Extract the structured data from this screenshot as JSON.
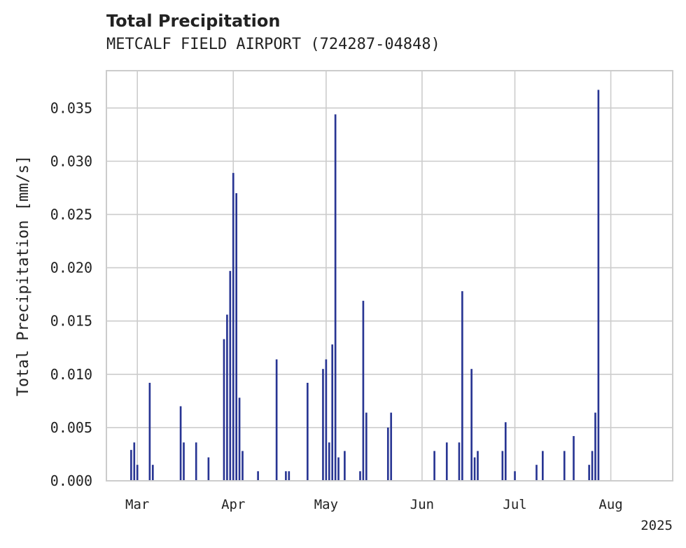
{
  "chart_data": {
    "type": "bar",
    "title": "Total Precipitation",
    "subtitle": "METCALF FIELD AIRPORT (724287-04848)",
    "xlabel": "",
    "ylabel": "Total Precipitation [mm/s]",
    "x_axis": "date",
    "xlim": [
      "2025-02-19",
      "2025-08-21"
    ],
    "ylim": [
      0,
      0.0385
    ],
    "x_ticks": [
      {
        "date": "2025-03-01",
        "label": "Mar"
      },
      {
        "date": "2025-04-01",
        "label": "Apr"
      },
      {
        "date": "2025-05-01",
        "label": "May"
      },
      {
        "date": "2025-06-01",
        "label": "Jun"
      },
      {
        "date": "2025-07-01",
        "label": "Jul"
      },
      {
        "date": "2025-08-01",
        "label": "Aug"
      }
    ],
    "x_offset_label": "2025",
    "y_ticks": [
      {
        "value": 0.0,
        "label": "0.000"
      },
      {
        "value": 0.005,
        "label": "0.005"
      },
      {
        "value": 0.01,
        "label": "0.010"
      },
      {
        "value": 0.015,
        "label": "0.015"
      },
      {
        "value": 0.02,
        "label": "0.020"
      },
      {
        "value": 0.025,
        "label": "0.025"
      },
      {
        "value": 0.03,
        "label": "0.030"
      },
      {
        "value": 0.035,
        "label": "0.035"
      }
    ],
    "grid": true,
    "bar_color": "#283593",
    "series": [
      {
        "x": [
          "2025-02-27",
          "2025-02-28",
          "2025-03-01",
          "2025-03-05",
          "2025-03-06",
          "2025-03-15",
          "2025-03-16",
          "2025-03-20",
          "2025-03-24",
          "2025-03-29",
          "2025-03-30",
          "2025-03-31",
          "2025-04-01",
          "2025-04-02",
          "2025-04-03",
          "2025-04-04",
          "2025-04-09",
          "2025-04-15",
          "2025-04-18",
          "2025-04-19",
          "2025-04-25",
          "2025-04-30",
          "2025-05-01",
          "2025-05-02",
          "2025-05-03",
          "2025-05-04",
          "2025-05-05",
          "2025-05-07",
          "2025-05-12",
          "2025-05-13",
          "2025-05-14",
          "2025-05-21",
          "2025-05-22",
          "2025-06-05",
          "2025-06-09",
          "2025-06-13",
          "2025-06-14",
          "2025-06-17",
          "2025-06-18",
          "2025-06-19",
          "2025-06-27",
          "2025-06-28",
          "2025-07-01",
          "2025-07-08",
          "2025-07-10",
          "2025-07-17",
          "2025-07-20",
          "2025-07-25",
          "2025-07-26",
          "2025-07-27",
          "2025-07-28"
        ],
        "values": [
          0.0029,
          0.0036,
          0.0015,
          0.0092,
          0.0015,
          0.007,
          0.0036,
          0.0036,
          0.0022,
          0.0133,
          0.0156,
          0.0197,
          0.0289,
          0.027,
          0.0078,
          0.0028,
          0.0009,
          0.0114,
          0.0009,
          0.0009,
          0.0092,
          0.0105,
          0.0114,
          0.0036,
          0.0128,
          0.0344,
          0.0022,
          0.0028,
          0.0009,
          0.0169,
          0.0064,
          0.005,
          0.0064,
          0.0028,
          0.0036,
          0.0036,
          0.0178,
          0.0105,
          0.0022,
          0.0028,
          0.0028,
          0.0055,
          0.0009,
          0.0015,
          0.0028,
          0.0028,
          0.0042,
          0.0015,
          0.0028,
          0.0064,
          0.0367
        ]
      }
    ]
  }
}
